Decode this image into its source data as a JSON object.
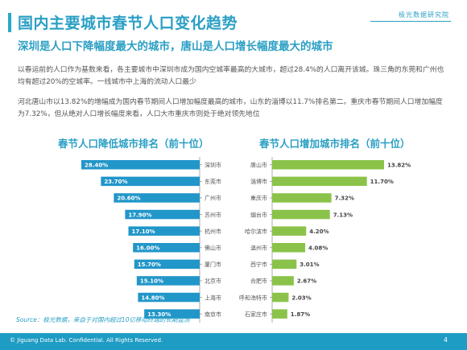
{
  "header": {
    "title": "国内主要城市春节人口变化趋势",
    "brand": "极光数据研究院",
    "subtitle": "深圳是人口下降幅度最大的城市，唐山是人口增长幅度最大的城市"
  },
  "body": {
    "paragraph1": "以春运前的人口作为基数来看，各主要城市中深圳市成为国内空城率最高的大城市，超过28.4%的人口离开该城。珠三角的东莞和广州也均有超过20%的空城率。一线城市中上海的流动人口最少",
    "paragraph2": "河北唐山市以13.82%的增幅成为国内春节期间人口增加幅度最高的城市，山东的淄博以11.7%排名第二。重庆市春节期间人口增加幅度为7.32%，但从绝对人口增长幅度来看，人口大市重庆市则处于绝对领先地位"
  },
  "chart_data": [
    {
      "type": "bar",
      "orientation": "horizontal",
      "direction": "right-to-left",
      "title": "春节人口降低城市排名（前十位）",
      "categories": [
        "深圳市",
        "东莞市",
        "广州市",
        "苏州市",
        "杭州市",
        "佛山市",
        "厦门市",
        "北京市",
        "上海市",
        "南京市"
      ],
      "values": [
        28.4,
        23.7,
        20.6,
        17.9,
        17.1,
        16.0,
        15.7,
        15.1,
        14.8,
        13.3
      ],
      "labels": [
        "28.40%",
        "23.70%",
        "20.60%",
        "17.90%",
        "17.10%",
        "16.00%",
        "15.70%",
        "15.10%",
        "14.80%",
        "13.30%"
      ],
      "xlim": [
        0,
        28.4
      ],
      "color": "#2196c9"
    },
    {
      "type": "bar",
      "orientation": "horizontal",
      "direction": "left-to-right",
      "title": "春节人口增加城市排名（前十位）",
      "categories": [
        "唐山市",
        "淄博市",
        "重庆市",
        "烟台市",
        "哈尔滨市",
        "温州市",
        "西宁市",
        "合肥市",
        "呼和浩特市",
        "石家庄市"
      ],
      "values": [
        13.82,
        11.7,
        7.32,
        7.13,
        4.2,
        4.08,
        3.01,
        2.67,
        2.03,
        1.87
      ],
      "labels": [
        "13.82%",
        "11.70%",
        "7.32%",
        "7.13%",
        "4.20%",
        "4.08%",
        "3.01%",
        "2.67%",
        "2.03%",
        "1.87%"
      ],
      "xlim": [
        0,
        13.82
      ],
      "color": "#8bc34a"
    }
  ],
  "source": "Source：极光数据，来自于对国内超过10亿移动终端的长期监测",
  "footer": {
    "copyright": "© Jiguang Data Lab. Confidential. All Rights Reserved.",
    "page": "4"
  }
}
